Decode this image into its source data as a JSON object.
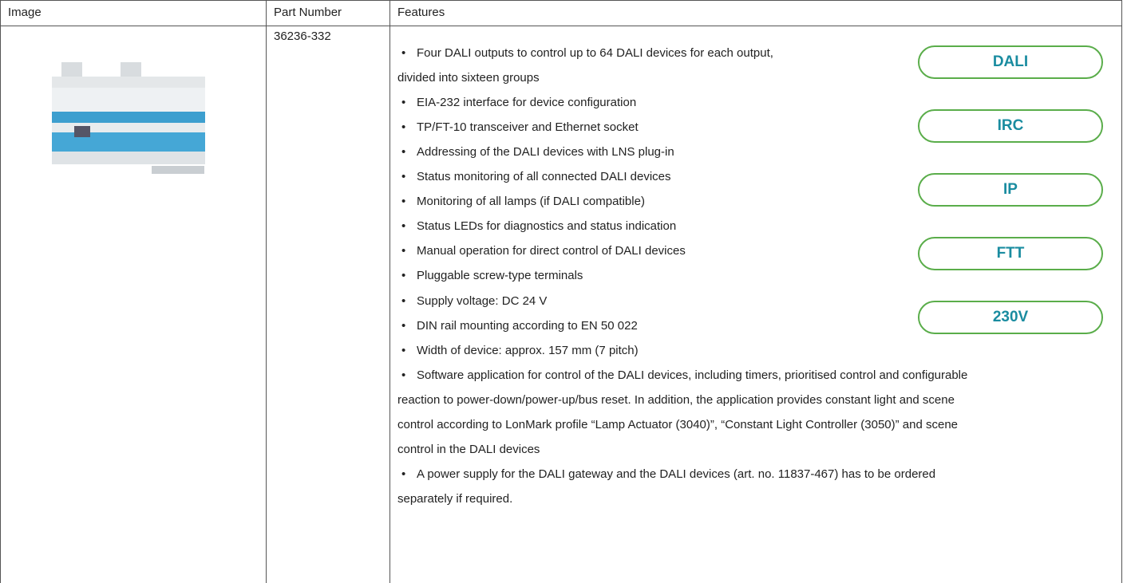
{
  "table": {
    "header": [
      "Image",
      "Part Number",
      "Features"
    ],
    "rows": [
      {
        "part_number": "36236-332",
        "features": [
          [
            "Four DALI outputs to control up to 64 DALI devices for each output,",
            "divided into sixteen groups"
          ],
          [
            "EIA-232 interface for device configuration"
          ],
          [
            "TP/FT-10 transceiver and Ethernet socket"
          ],
          [
            "Addressing of the DALI devices with LNS plug-in"
          ],
          [
            "Status monitoring of all connected DALI devices"
          ],
          [
            "Monitoring of all lamps (if DALI compatible)"
          ],
          [
            "Status LEDs for diagnostics and status indication"
          ],
          [
            "Manual operation for direct control of DALI devices"
          ],
          [
            "Pluggable screw-type terminals"
          ],
          [
            "Supply voltage: DC 24 V"
          ],
          [
            "DIN rail mounting according to EN 50 022"
          ],
          [
            "Width of device: approx. 157 mm (7 pitch)"
          ],
          [
            "Software application for control of the DALI devices, including timers, prioritised control and configurable",
            "reaction to power-down/power-up/bus reset. In addition, the application provides constant light and scene",
            "control according to LonMark profile “Lamp Actuator (3040)”, “Constant Light Controller (3050)” and scene",
            "control in the DALI devices"
          ],
          [
            "A power supply for the DALI gateway and the DALI devices (art. no. 11837-467) has to be ordered",
            "separately if required."
          ]
        ],
        "badges": [
          "DALI",
          "IRC",
          "IP",
          "FTT",
          "230V"
        ]
      }
    ]
  }
}
